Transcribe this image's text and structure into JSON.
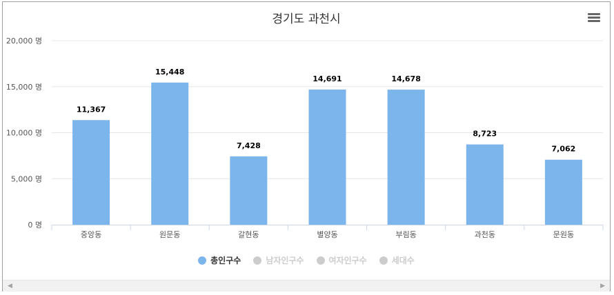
{
  "chart_data": {
    "type": "bar",
    "title": "경기도 과천시",
    "categories": [
      "중앙동",
      "원문동",
      "갈현동",
      "별양동",
      "부림동",
      "과천동",
      "문원동"
    ],
    "series": [
      {
        "name": "총인구수",
        "values": [
          11367,
          15448,
          7428,
          14691,
          14678,
          8723,
          7062
        ]
      }
    ],
    "data_labels": [
      "11,367",
      "15,448",
      "7,428",
      "14,691",
      "14,678",
      "8,723",
      "7,062"
    ],
    "ylim": [
      0,
      20000
    ],
    "yticks": [
      0,
      5000,
      10000,
      15000,
      20000
    ],
    "ytick_labels": [
      "0 명",
      "5,000 명",
      "10,000 명",
      "15,000 명",
      "20,000 명"
    ],
    "grid": true,
    "bar_color": "#7cb5ec",
    "legend_position": "bottom-center"
  },
  "legend": [
    {
      "label": "총인구수",
      "active": true,
      "color": "#7cb5ec"
    },
    {
      "label": "남자인구수",
      "active": false,
      "color": "#cccccc"
    },
    {
      "label": "여자인구수",
      "active": false,
      "color": "#cccccc"
    },
    {
      "label": "세대수",
      "active": false,
      "color": "#cccccc"
    }
  ],
  "scrollbar": {
    "left_arrow": "◀",
    "right_arrow": "▶"
  }
}
